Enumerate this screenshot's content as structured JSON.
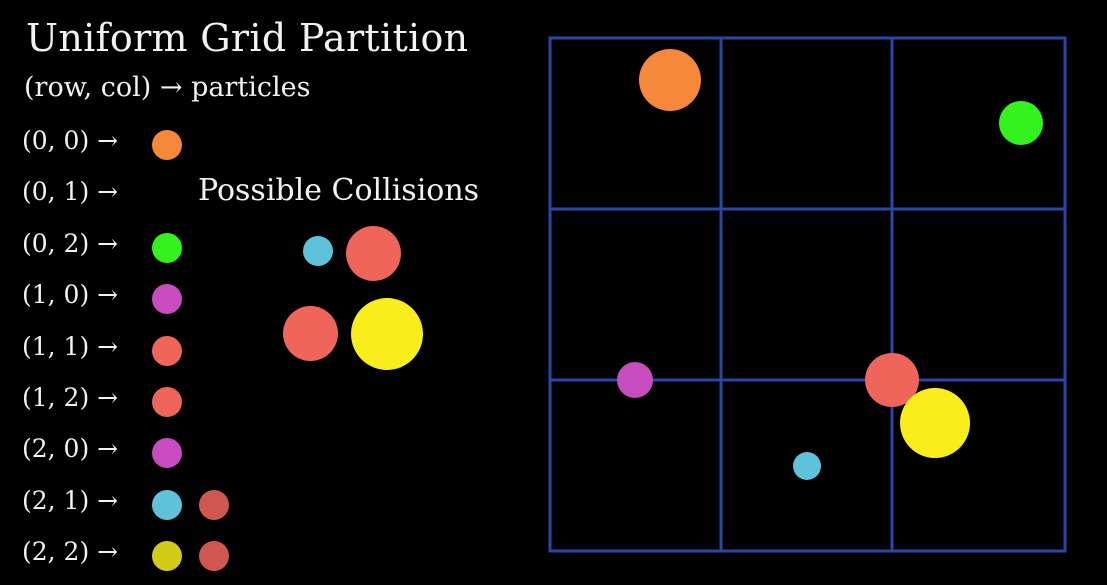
{
  "title": "Uniform Grid Partition",
  "subtitle": "(row, col) → particles",
  "colors": {
    "orange": "#f5883a",
    "green": "#34f21c",
    "magenta": "#c64cbf",
    "salmon": "#ef655a",
    "salmon_dim": "#cf574f",
    "cyan": "#5dc2da",
    "yellow": "#f9ee1b",
    "yellow_dim": "#d2cc19",
    "grid": "#2a47a6"
  },
  "cells": [
    {
      "label": "(0, 0) →",
      "particles": [
        "orange"
      ]
    },
    {
      "label": "(0, 1) →",
      "particles": []
    },
    {
      "label": "(0, 2) →",
      "particles": [
        "green"
      ]
    },
    {
      "label": "(1, 0) →",
      "particles": [
        "magenta"
      ]
    },
    {
      "label": "(1, 1) →",
      "particles": [
        "salmon"
      ]
    },
    {
      "label": "(1, 2) →",
      "particles": [
        "salmon"
      ]
    },
    {
      "label": "(2, 0) →",
      "particles": [
        "magenta"
      ]
    },
    {
      "label": "(2, 1) →",
      "particles": [
        "cyan",
        "salmon_dim"
      ]
    },
    {
      "label": "(2, 2) →",
      "particles": [
        "yellow_dim",
        "salmon_dim"
      ]
    }
  ],
  "possible_collisions": {
    "label": "Possible Collisions",
    "pairs": [
      [
        "cyan",
        "salmon"
      ],
      [
        "salmon",
        "yellow"
      ]
    ]
  },
  "grid": {
    "rows": 3,
    "cols": 3
  },
  "particles": [
    {
      "name": "orange",
      "color": "orange"
    },
    {
      "name": "green",
      "color": "green"
    },
    {
      "name": "magenta",
      "color": "magenta"
    },
    {
      "name": "salmon",
      "color": "salmon"
    },
    {
      "name": "yellow",
      "color": "yellow"
    },
    {
      "name": "cyan",
      "color": "cyan"
    }
  ]
}
